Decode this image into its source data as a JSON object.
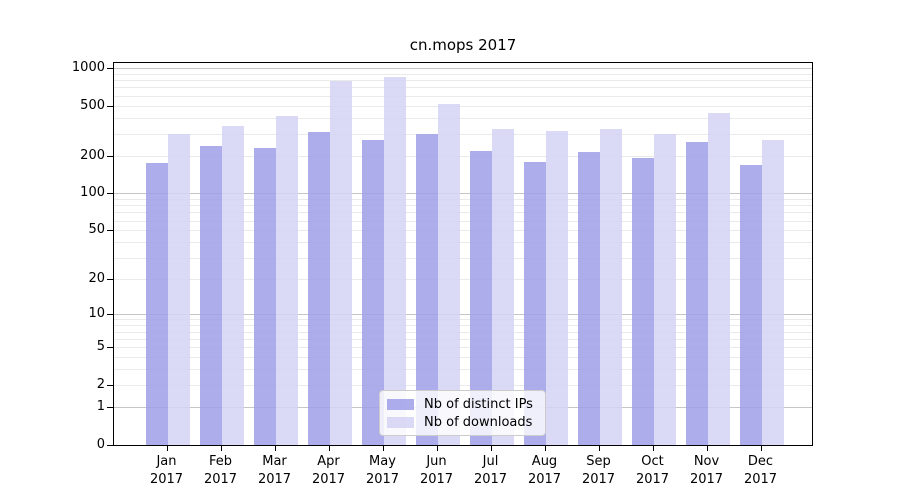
{
  "title": "cn.mops 2017",
  "chart_data": {
    "type": "bar",
    "title": "cn.mops 2017",
    "categories": [
      "Jan 2017",
      "Feb 2017",
      "Mar 2017",
      "Apr 2017",
      "May 2017",
      "Jun 2017",
      "Jul 2017",
      "Aug 2017",
      "Sep 2017",
      "Oct 2017",
      "Nov 2017",
      "Dec 2017"
    ],
    "series": [
      {
        "name": "Nb of distinct IPs",
        "values": [
          176,
          237,
          230,
          308,
          268,
          296,
          219,
          179,
          213,
          190,
          255,
          169
        ]
      },
      {
        "name": "Nb of downloads",
        "values": [
          298,
          348,
          417,
          793,
          853,
          517,
          328,
          313,
          325,
          297,
          434,
          265
        ]
      }
    ],
    "xlabel": "",
    "ylabel": "",
    "y_scale": "log1p",
    "y_ticks": [
      0,
      1,
      2,
      5,
      10,
      20,
      50,
      100,
      200,
      500,
      1000
    ],
    "ylim": [
      0,
      1000
    ],
    "grid": "horizontal-major-and-minor",
    "legend_position": "lower center"
  },
  "legend": {
    "items": [
      {
        "label": "Nb of distinct IPs",
        "series": "ips"
      },
      {
        "label": "Nb of downloads",
        "series": "downloads"
      }
    ]
  },
  "colors": {
    "ips_bar": "#9f9fe9",
    "downloads_bar": "#d4d4f5",
    "bar_opacity": "0.85",
    "grid_major": "#c6c6c6",
    "grid_minor": "#eaeaea",
    "axis_line": "#000000",
    "legend_border": "#cccccc",
    "text": "#000000",
    "background": "#ffffff"
  }
}
